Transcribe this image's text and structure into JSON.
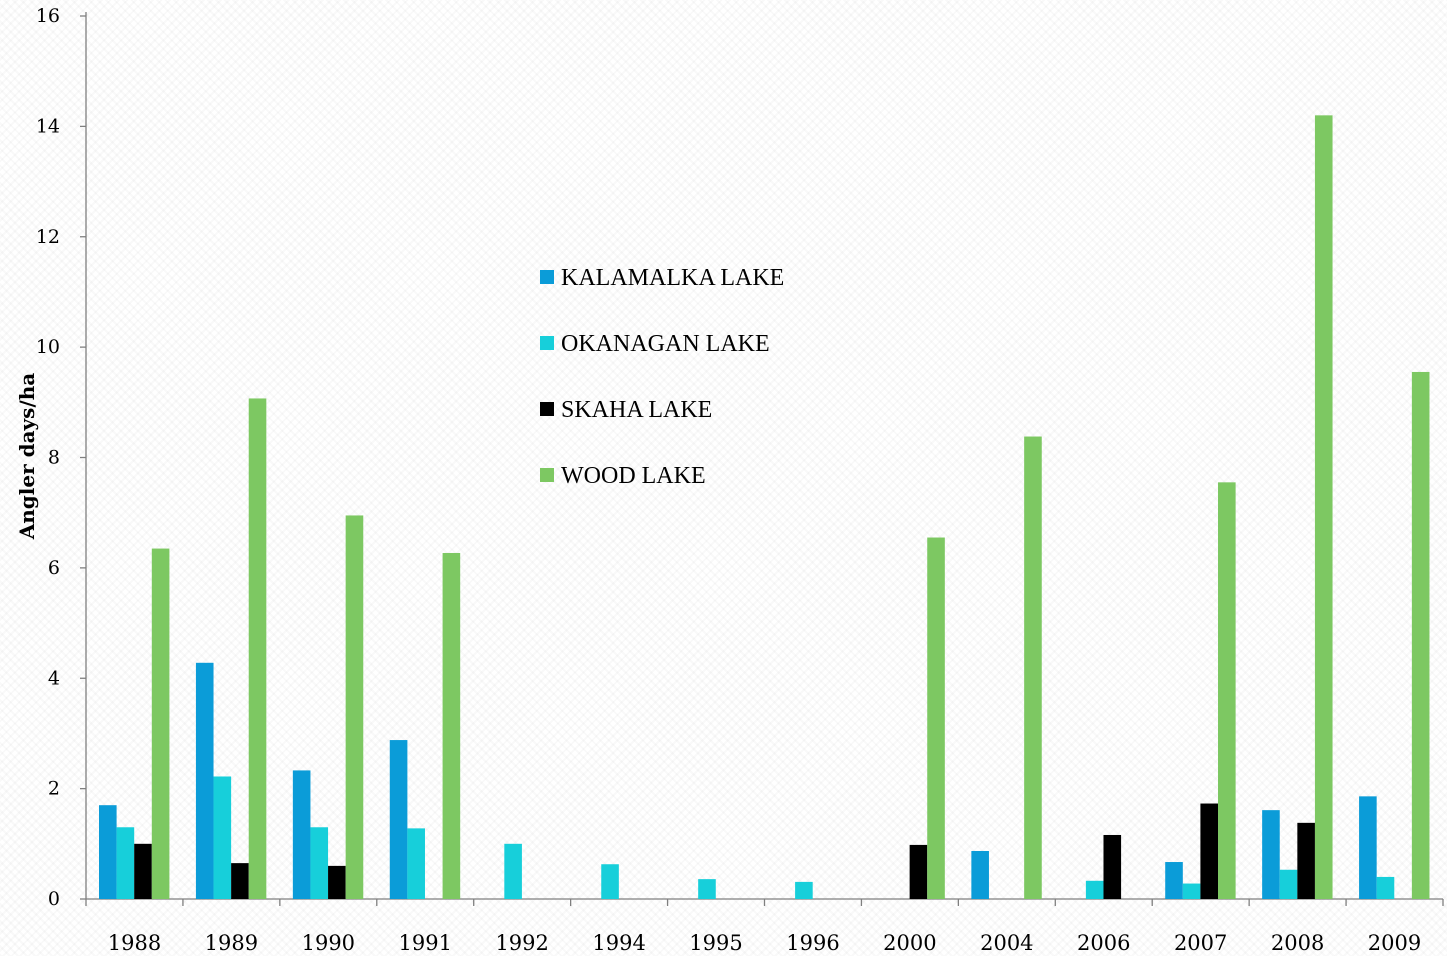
{
  "chart_data": {
    "type": "bar",
    "categories": [
      "1988",
      "1989",
      "1990",
      "1991",
      "1992",
      "1994",
      "1995",
      "1996",
      "2000",
      "2004",
      "2006",
      "2007",
      "2008",
      "2009"
    ],
    "series": [
      {
        "name": "KALAMALKA LAKE",
        "color": "#0B9CD8",
        "values": [
          1.7,
          4.28,
          2.33,
          2.88,
          null,
          null,
          null,
          null,
          null,
          0.87,
          null,
          0.67,
          1.61,
          1.86
        ]
      },
      {
        "name": "OKANAGAN LAKE",
        "color": "#17CFDA",
        "values": [
          1.3,
          2.22,
          1.3,
          1.28,
          1.0,
          0.63,
          0.36,
          0.31,
          null,
          null,
          0.33,
          0.28,
          0.53,
          0.4
        ]
      },
      {
        "name": "SKAHA LAKE",
        "color": "#000000",
        "values": [
          1.0,
          0.65,
          0.6,
          null,
          null,
          null,
          null,
          null,
          0.98,
          null,
          1.16,
          1.73,
          1.38,
          null
        ]
      },
      {
        "name": "WOOD LAKE",
        "color": "#7DC862",
        "values": [
          6.35,
          9.07,
          6.95,
          6.27,
          null,
          null,
          null,
          null,
          6.55,
          8.38,
          null,
          7.55,
          14.2,
          9.55
        ]
      }
    ],
    "ylabel": "Angler days/ha",
    "ylim": [
      0,
      16
    ],
    "yticks": [
      "0",
      "2",
      "4",
      "6",
      "8",
      "10",
      "12",
      "14",
      "16"
    ],
    "ytick_values": [
      0,
      2,
      4,
      6,
      8,
      10,
      12,
      14,
      16
    ],
    "grid": false,
    "legend_position": "upper-center"
  }
}
